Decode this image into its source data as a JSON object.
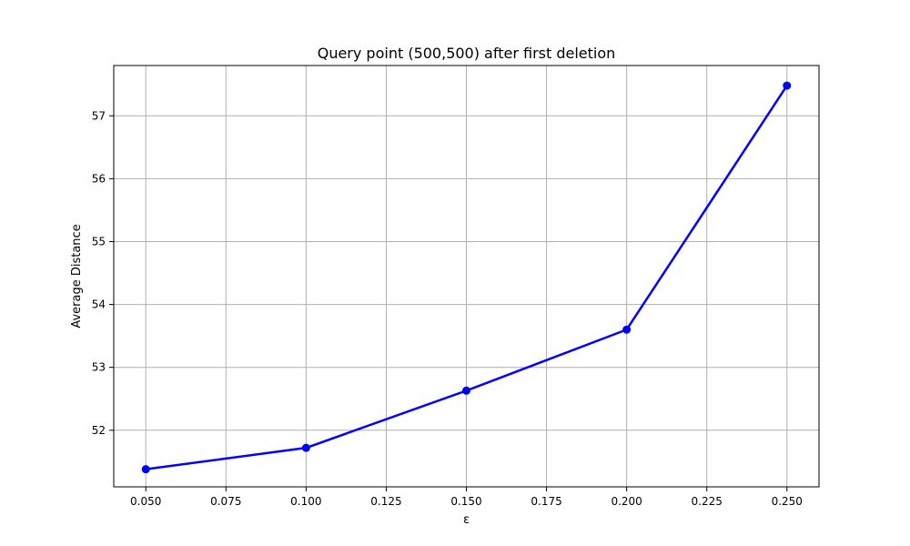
{
  "chart_data": {
    "type": "line",
    "title": "Query point (500,500) after first deletion",
    "xlabel": "ε",
    "ylabel": "Average Distance",
    "xlim": [
      0.04,
      0.26
    ],
    "ylim": [
      51.1,
      57.8
    ],
    "xticks": [
      0.05,
      0.075,
      0.1,
      0.125,
      0.15,
      0.175,
      0.2,
      0.225,
      0.25
    ],
    "xtick_labels": [
      "0.050",
      "0.075",
      "0.100",
      "0.125",
      "0.150",
      "0.175",
      "0.200",
      "0.225",
      "0.250"
    ],
    "yticks": [
      52,
      53,
      54,
      55,
      56,
      57
    ],
    "ytick_labels": [
      "52",
      "53",
      "54",
      "55",
      "56",
      "57"
    ],
    "grid": true,
    "series": [
      {
        "color": "#0000ff",
        "marker": "circle",
        "x": [
          0.05,
          0.1,
          0.15,
          0.2,
          0.25
        ],
        "y": [
          51.38,
          51.72,
          52.63,
          53.6,
          57.48
        ]
      }
    ]
  }
}
